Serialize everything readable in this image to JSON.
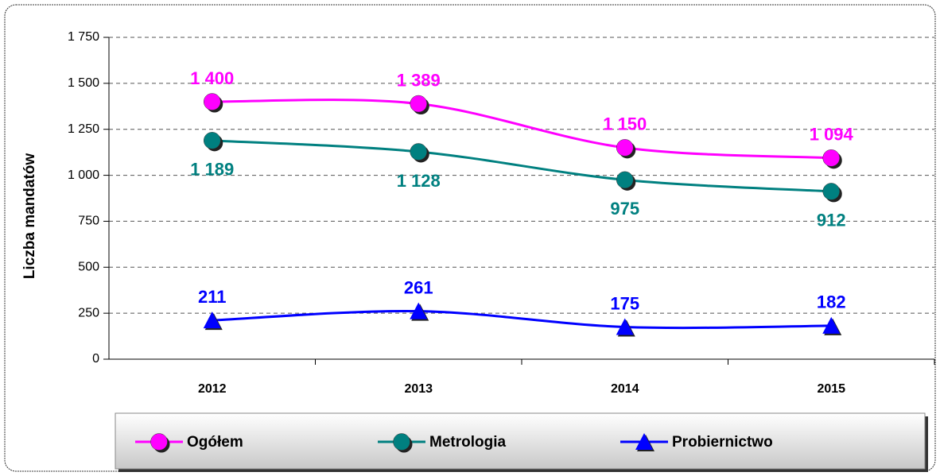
{
  "chart_data": {
    "type": "line",
    "y_label": "Liczba mandatów",
    "categories": [
      "2012",
      "2013",
      "2014",
      "2015"
    ],
    "series": [
      {
        "name": "Ogółem",
        "color": "#ff00ff",
        "marker": "circle",
        "label_position": [
          "above",
          "above",
          "above",
          "above"
        ],
        "values": [
          1400,
          1389,
          1150,
          1094
        ],
        "value_labels": [
          "1 400",
          "1 389",
          "1 150",
          "1 094"
        ]
      },
      {
        "name": "Metrologia",
        "color": "#008080",
        "marker": "circle",
        "label_position": [
          "below",
          "below",
          "below",
          "below"
        ],
        "values": [
          1189,
          1128,
          975,
          912
        ],
        "value_labels": [
          "1 189",
          "1 128",
          "975",
          "912"
        ]
      },
      {
        "name": "Probiernictwo",
        "color": "#0000ff",
        "marker": "triangle",
        "label_position": [
          "above",
          "above",
          "above",
          "above"
        ],
        "values": [
          211,
          261,
          175,
          182
        ],
        "value_labels": [
          "211",
          "261",
          "175",
          "182"
        ]
      }
    ],
    "ylim": [
      0,
      1750
    ],
    "yticks": [
      0,
      250,
      500,
      750,
      {
        "value": 1000,
        "label": "1 000"
      },
      {
        "value": 1250,
        "label": "1 250"
      },
      {
        "value": 1500,
        "label": "1 500"
      },
      {
        "value": 1750,
        "label": "1 750"
      }
    ],
    "grid": true,
    "legend": "bottom"
  }
}
